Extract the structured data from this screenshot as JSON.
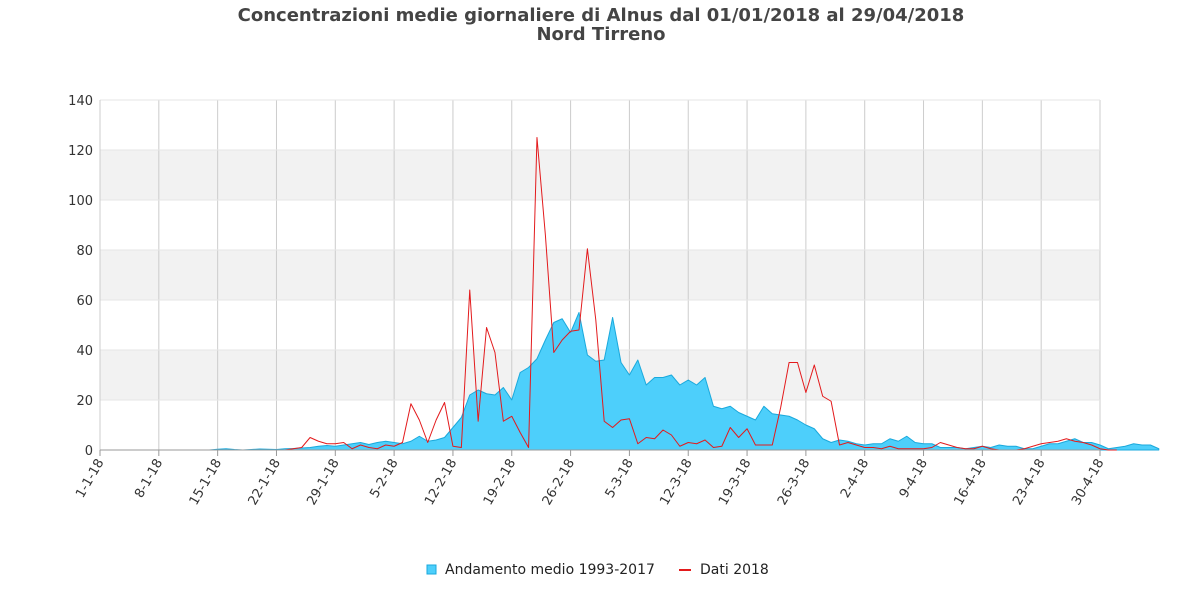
{
  "chart_data": {
    "type": "area",
    "title": "Concentrazioni medie giornaliere di Alnus dal 01/01/2018 al 29/04/2018",
    "subtitle": "Nord Tirreno",
    "xlabel": "",
    "ylabel": "",
    "ylim": [
      0,
      140
    ],
    "yticks": [
      "0",
      "20",
      "40",
      "60",
      "80",
      "100",
      "120",
      "140"
    ],
    "xticks": [
      "1-1-18",
      "8-1-18",
      "15-1-18",
      "22-1-18",
      "29-1-18",
      "5-2-18",
      "12-2-18",
      "19-2-18",
      "26-2-18",
      "5-3-18",
      "12-3-18",
      "19-3-18",
      "26-3-18",
      "2-4-18",
      "9-4-18",
      "16-4-18",
      "23-4-18",
      "30-4-18"
    ],
    "grid": "horizontal bands + vertical weekly lines",
    "legend_position": "bottom",
    "x_start": "2018-01-01",
    "series": [
      {
        "name": "Andamento medio 1993-2017",
        "type": "area",
        "color": "#4dcffb",
        "edge_color": "#1aa9dc",
        "values": [
          0,
          0,
          0,
          0,
          0,
          0,
          0,
          0,
          0,
          0,
          0,
          0,
          0,
          0,
          0.3,
          0.5,
          0.2,
          0,
          0.2,
          0.4,
          0.3,
          0.2,
          0.5,
          0.6,
          0.8,
          1.0,
          1.5,
          1.8,
          1.5,
          2.0,
          2.5,
          3.0,
          2.2,
          3.0,
          3.5,
          3.0,
          2.5,
          3.5,
          5.5,
          3.5,
          4.0,
          5.0,
          9.0,
          13.0,
          22.0,
          24.0,
          22.5,
          22.0,
          25.0,
          20.0,
          31.0,
          33.0,
          36.5,
          44.0,
          51.0,
          52.5,
          47.0,
          55.0,
          38.0,
          35.5,
          36.0,
          53.0,
          35.0,
          30.0,
          36.0,
          26.0,
          29.0,
          29.0,
          30.0,
          26.0,
          28.0,
          26.0,
          29.0,
          17.5,
          16.5,
          17.5,
          15.0,
          13.5,
          12.0,
          17.5,
          14.5,
          14.0,
          13.5,
          12.0,
          10.0,
          8.5,
          4.5,
          3.0,
          4.0,
          3.5,
          2.5,
          2.0,
          2.5,
          2.5,
          4.5,
          3.5,
          5.5,
          3.0,
          2.5,
          2.5,
          1.0,
          1.0,
          1.0,
          0.5,
          1.0,
          1.5,
          1.0,
          2.0,
          1.5,
          1.5,
          0.5,
          0.5,
          1.5,
          2.5,
          2.5,
          3.5,
          4.5,
          3.0,
          3.0,
          2.0,
          0.5,
          1.0,
          1.5,
          2.5,
          2.0,
          2.0,
          0.5
        ]
      },
      {
        "name": "Dati 2018",
        "type": "line",
        "color": "#e31a1c",
        "values": [
          0,
          0,
          0,
          0,
          0,
          0,
          0,
          0,
          0,
          0,
          0,
          0,
          0,
          0,
          0,
          0,
          0,
          0,
          0,
          0,
          0,
          0,
          0,
          0.5,
          1.0,
          5.0,
          3.5,
          2.5,
          2.5,
          3.0,
          0.5,
          2.0,
          1.0,
          0.5,
          2.0,
          1.5,
          3.0,
          18.5,
          12.0,
          3.0,
          12.0,
          19.0,
          1.5,
          1.0,
          64.0,
          11.5,
          49.0,
          39.0,
          11.5,
          13.5,
          7.0,
          1.0,
          125.0,
          86.0,
          39.0,
          44.0,
          47.5,
          48.0,
          80.5,
          52.0,
          11.5,
          9.0,
          12.0,
          12.5,
          2.5,
          5.0,
          4.5,
          8.0,
          6.0,
          1.5,
          3.0,
          2.5,
          4.0,
          1.0,
          1.5,
          9.0,
          5.0,
          8.5,
          2.0,
          2.0,
          2.0,
          17.0,
          35.0,
          35.0,
          23.0,
          34.0,
          21.5,
          19.5,
          2.0,
          3.0,
          2.0,
          1.0,
          1.0,
          0.5,
          1.5,
          0.5,
          0.5,
          0.5,
          0.5,
          1.0,
          3.0,
          2.0,
          1.0,
          0.5,
          0.5,
          1.5,
          0.5,
          0,
          0,
          0,
          0.5,
          1.5,
          2.5,
          3.0,
          3.5,
          4.5,
          3.5,
          3.0,
          2.0,
          0.5,
          0,
          0
        ]
      }
    ]
  }
}
